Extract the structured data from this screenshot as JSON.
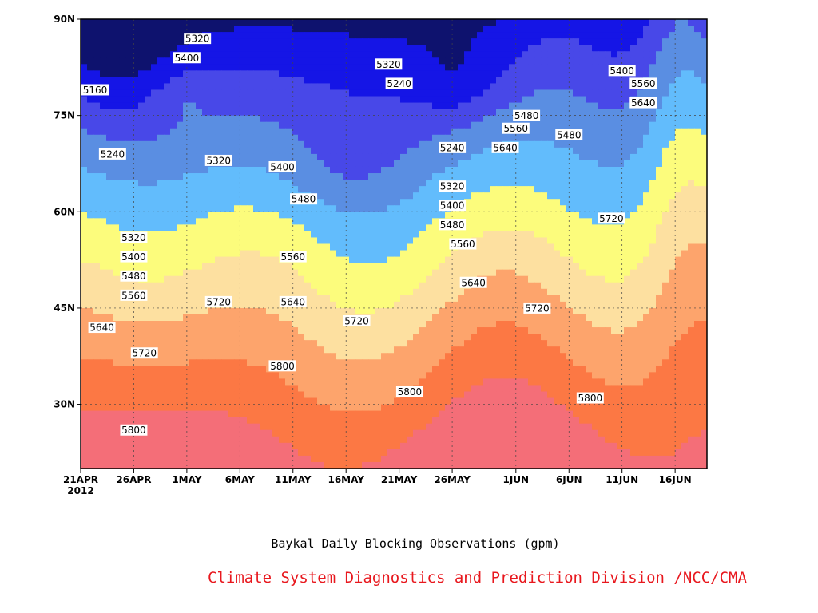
{
  "chart_data": {
    "type": "heatmap",
    "subtitle": "Baykal Daily Blocking Observations (gpm)",
    "credit": "Climate System Diagnostics and Prediction Division /NCC/CMA",
    "x_ticks": [
      "21APR",
      "26APR",
      "1MAY",
      "6MAY",
      "11MAY",
      "16MAY",
      "21MAY",
      "26MAY",
      "1JUN",
      "6JUN",
      "11JUN",
      "16JUN"
    ],
    "x_year_label": "2012",
    "y_ticks": [
      "30N",
      "45N",
      "60N",
      "75N",
      "90N"
    ],
    "x_range": [
      "2012-04-21",
      "2012-06-19"
    ],
    "y_range": [
      20,
      90
    ],
    "grid": true,
    "contour_levels": [
      5160,
      5240,
      5320,
      5400,
      5480,
      5560,
      5640,
      5720,
      5800
    ],
    "fill_colors": [
      "#0e126e",
      "#1515e6",
      "#4848e8",
      "#5a8ee2",
      "#62bcfc",
      "#fcfc7c",
      "#fde0a0",
      "#fda46c",
      "#fc7844",
      "#f46e78"
    ],
    "contour_labels": [
      {
        "text": "5160",
        "date": "2012-04-21",
        "lat": 79
      },
      {
        "text": "5240",
        "date": "2012-04-24",
        "lat": 69
      },
      {
        "text": "5320",
        "date": "2012-04-26",
        "lat": 56
      },
      {
        "text": "5400",
        "date": "2012-04-26",
        "lat": 53
      },
      {
        "text": "5480",
        "date": "2012-04-26",
        "lat": 50
      },
      {
        "text": "5560",
        "date": "2012-04-26",
        "lat": 47
      },
      {
        "text": "5640",
        "date": "2012-04-23",
        "lat": 42
      },
      {
        "text": "5720",
        "date": "2012-04-27",
        "lat": 38
      },
      {
        "text": "5800",
        "date": "2012-04-26",
        "lat": 26
      },
      {
        "text": "5320",
        "date": "2012-05-02",
        "lat": 87
      },
      {
        "text": "5400",
        "date": "2012-05-01",
        "lat": 84
      },
      {
        "text": "5320",
        "date": "2012-05-04",
        "lat": 68
      },
      {
        "text": "5720",
        "date": "2012-05-04",
        "lat": 46
      },
      {
        "text": "5400",
        "date": "2012-05-10",
        "lat": 67
      },
      {
        "text": "5800",
        "date": "2012-05-10",
        "lat": 36
      },
      {
        "text": "5480",
        "date": "2012-05-12",
        "lat": 62
      },
      {
        "text": "5560",
        "date": "2012-05-11",
        "lat": 53
      },
      {
        "text": "5640",
        "date": "2012-05-11",
        "lat": 46
      },
      {
        "text": "5720",
        "date": "2012-05-17",
        "lat": 43
      },
      {
        "text": "5320",
        "date": "2012-05-20",
        "lat": 83
      },
      {
        "text": "5240",
        "date": "2012-05-21",
        "lat": 80
      },
      {
        "text": "5800",
        "date": "2012-05-22",
        "lat": 32
      },
      {
        "text": "5240",
        "date": "2012-05-26",
        "lat": 70
      },
      {
        "text": "5320",
        "date": "2012-05-26",
        "lat": 64
      },
      {
        "text": "5400",
        "date": "2012-05-26",
        "lat": 61
      },
      {
        "text": "5480",
        "date": "2012-05-26",
        "lat": 58
      },
      {
        "text": "5560",
        "date": "2012-05-27",
        "lat": 55
      },
      {
        "text": "5640",
        "date": "2012-05-28",
        "lat": 49
      },
      {
        "text": "5480",
        "date": "2012-06-02",
        "lat": 75
      },
      {
        "text": "5560",
        "date": "2012-06-01",
        "lat": 73
      },
      {
        "text": "5640",
        "date": "2012-05-31",
        "lat": 70
      },
      {
        "text": "5720",
        "date": "2012-06-03",
        "lat": 45
      },
      {
        "text": "5480",
        "date": "2012-06-06",
        "lat": 72
      },
      {
        "text": "5800",
        "date": "2012-06-08",
        "lat": 31
      },
      {
        "text": "5400",
        "date": "2012-06-11",
        "lat": 82
      },
      {
        "text": "5560",
        "date": "2012-06-13",
        "lat": 80
      },
      {
        "text": "5640",
        "date": "2012-06-13",
        "lat": 77
      },
      {
        "text": "5720",
        "date": "2012-06-10",
        "lat": 59
      }
    ]
  }
}
